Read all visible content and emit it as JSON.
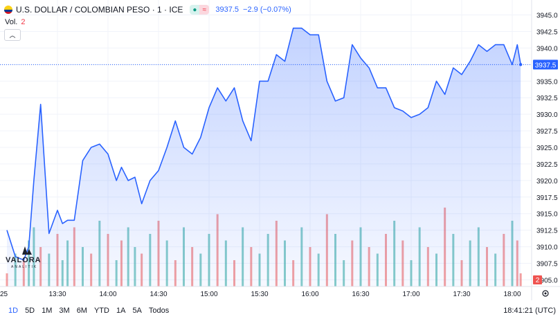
{
  "header": {
    "title": "U.S. DOLLAR / COLOMBIAN PESO · 1 · ICE",
    "price": "3937.5",
    "change": "−2.9 (−0.07%)",
    "pill_left": "●",
    "pill_right": "≈"
  },
  "volume_label": {
    "label": "Vol.",
    "value": "2"
  },
  "timeframes": [
    "1D",
    "5D",
    "1M",
    "3M",
    "6M",
    "YTD",
    "1A",
    "5A",
    "Todos"
  ],
  "active_timeframe": "1D",
  "clock": "18:41:21 (UTC)",
  "logo": {
    "name": "VALORA",
    "sub": "ANALITIK"
  },
  "colors": {
    "line": "#2962ff",
    "up": "#26a69a",
    "down": "#ef5350",
    "grid": "#f0f3fa"
  },
  "chart_data": {
    "type": "area",
    "x_ticks": [
      "25",
      "13:30",
      "14:00",
      "14:30",
      "15:00",
      "15:30",
      "16:00",
      "16:30",
      "17:00",
      "17:30",
      "18:00"
    ],
    "y_ticks": [
      "3945.0",
      "3942.5",
      "3940.0",
      "3937.5",
      "3935.0",
      "3932.5",
      "3930.0",
      "3927.5",
      "3925.0",
      "3922.5",
      "3920.0",
      "3917.5",
      "3915.0",
      "3912.5",
      "3910.0",
      "3907.5",
      "3905.0"
    ],
    "ylim": [
      3904.0,
      3946.0
    ],
    "last_price_label": "3937.5",
    "volume_value_label": "2",
    "x": [
      "13:00",
      "13:05",
      "13:10",
      "13:13",
      "13:16",
      "13:20",
      "13:25",
      "13:30",
      "13:33",
      "13:36",
      "13:40",
      "13:45",
      "13:50",
      "13:55",
      "14:00",
      "14:05",
      "14:08",
      "14:12",
      "14:16",
      "14:20",
      "14:25",
      "14:30",
      "14:35",
      "14:40",
      "14:45",
      "14:50",
      "14:55",
      "15:00",
      "15:05",
      "15:10",
      "15:15",
      "15:20",
      "15:25",
      "15:30",
      "15:35",
      "15:40",
      "15:45",
      "15:50",
      "15:55",
      "16:00",
      "16:05",
      "16:10",
      "16:15",
      "16:20",
      "16:25",
      "16:30",
      "16:35",
      "16:40",
      "16:45",
      "16:50",
      "16:55",
      "17:00",
      "17:05",
      "17:10",
      "17:15",
      "17:20",
      "17:25",
      "17:30",
      "17:35",
      "17:40",
      "17:45",
      "17:50",
      "17:55",
      "18:00",
      "18:03",
      "18:05"
    ],
    "values": [
      3912.5,
      3908.5,
      3908.0,
      3910.0,
      3920.0,
      3931.5,
      3912.0,
      3915.5,
      3913.5,
      3914.0,
      3914.0,
      3923.0,
      3925.0,
      3925.5,
      3924.0,
      3920.0,
      3922.0,
      3920.0,
      3920.5,
      3916.5,
      3920.0,
      3921.5,
      3925.0,
      3929.0,
      3925.0,
      3924.0,
      3926.5,
      3931.0,
      3934.0,
      3932.0,
      3934.0,
      3929.0,
      3926.0,
      3935.0,
      3935.0,
      3939.0,
      3938.0,
      3943.0,
      3943.0,
      3942.0,
      3942.0,
      3935.0,
      3932.0,
      3932.5,
      3940.5,
      3938.5,
      3937.0,
      3934.0,
      3934.0,
      3931.0,
      3930.5,
      3929.5,
      3930.0,
      3931.0,
      3935.0,
      3933.0,
      3937.0,
      3936.0,
      3938.0,
      3940.5,
      3939.5,
      3940.5,
      3940.5,
      3937.5,
      3940.5,
      3937.5
    ],
    "volume": [
      2,
      5,
      4,
      7,
      9,
      6,
      5,
      8,
      4,
      7,
      9,
      6,
      5,
      10,
      8,
      4,
      7,
      9,
      6,
      5,
      8,
      10,
      7,
      4,
      9,
      6,
      5,
      8,
      11,
      7,
      4,
      9,
      6,
      5,
      8,
      10,
      7,
      4,
      9,
      6,
      5,
      11,
      8,
      4,
      7,
      9,
      6,
      5,
      8,
      10,
      7,
      4,
      9,
      6,
      5,
      12,
      8,
      4,
      7,
      9,
      6,
      5,
      8,
      10,
      7,
      2
    ],
    "volume_up": [
      false,
      true,
      false,
      true,
      true,
      false,
      true,
      false,
      true,
      true,
      false,
      true,
      false,
      true,
      false,
      true,
      false,
      true,
      true,
      false,
      true,
      false,
      true,
      false,
      true,
      false,
      true,
      true,
      false,
      true,
      false,
      true,
      false,
      true,
      true,
      false,
      true,
      false,
      true,
      false,
      true,
      false,
      true,
      true,
      false,
      true,
      false,
      true,
      false,
      true,
      false,
      true,
      true,
      false,
      true,
      false,
      true,
      false,
      true,
      true,
      false,
      true,
      false,
      true,
      false,
      false
    ],
    "grid": true
  }
}
